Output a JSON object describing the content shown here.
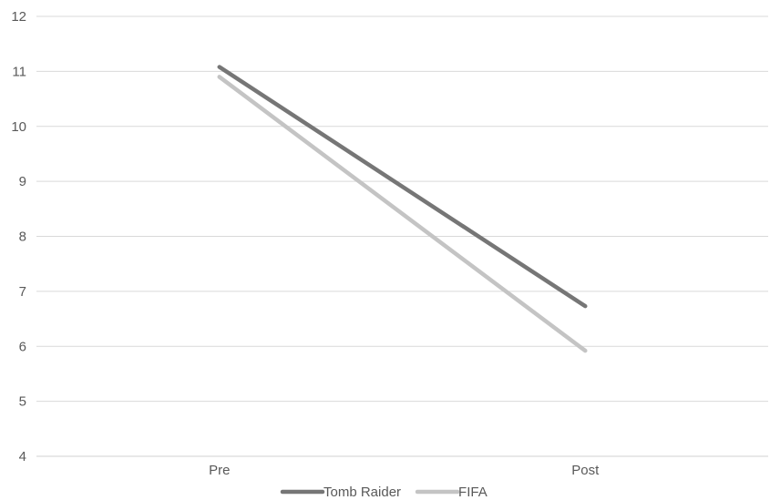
{
  "chart_data": {
    "type": "line",
    "categories": [
      "Pre",
      "Post"
    ],
    "series": [
      {
        "name": "Tomb Raider",
        "values": [
          11.08,
          6.73
        ],
        "color": "#767676"
      },
      {
        "name": "FIFA",
        "values": [
          10.9,
          5.92
        ],
        "color": "#c4c4c4"
      }
    ],
    "ylim": [
      4,
      12
    ],
    "yticks": [
      "12",
      "11",
      "10",
      "9",
      "8",
      "7",
      "6",
      "5",
      "4"
    ],
    "grid": true,
    "legend_position": "bottom"
  }
}
